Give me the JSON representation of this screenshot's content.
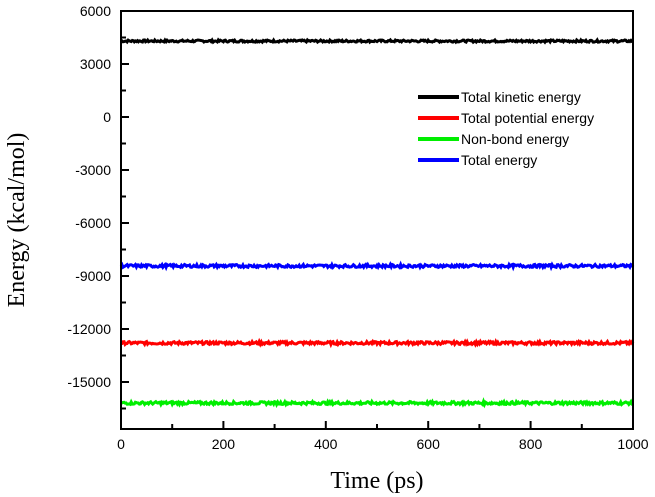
{
  "chart_data": {
    "type": "line",
    "title": "",
    "xlabel": "Time (ps)",
    "ylabel": "Energy (kcal/mol)",
    "xlim": [
      0,
      1000
    ],
    "ylim": [
      -17660,
      6000
    ],
    "xticks": [
      0,
      200,
      400,
      600,
      800,
      1000
    ],
    "xtick_labels": [
      "0",
      "200",
      "400",
      "600",
      "800",
      "1000"
    ],
    "yticks": [
      6000,
      3000,
      0,
      -3000,
      -6000,
      -9000,
      -12000,
      -15000
    ],
    "ytick_labels": [
      "6000",
      "3000",
      "0",
      "-3000",
      "-6000",
      "-9000",
      "-12000",
      "-15000"
    ],
    "grid": false,
    "legend_position": "top-right",
    "series": [
      {
        "name": "Total kinetic energy",
        "color": "#000000",
        "mean": 4300,
        "noise": 60
      },
      {
        "name": "Total potential energy",
        "color": "#ff0000",
        "mean": -12790,
        "noise": 80
      },
      {
        "name": "Non-bond energy",
        "color": "#00ee00",
        "mean": -16190,
        "noise": 80
      },
      {
        "name": "Total energy",
        "color": "#0000ff",
        "mean": -8430,
        "noise": 80
      }
    ]
  }
}
